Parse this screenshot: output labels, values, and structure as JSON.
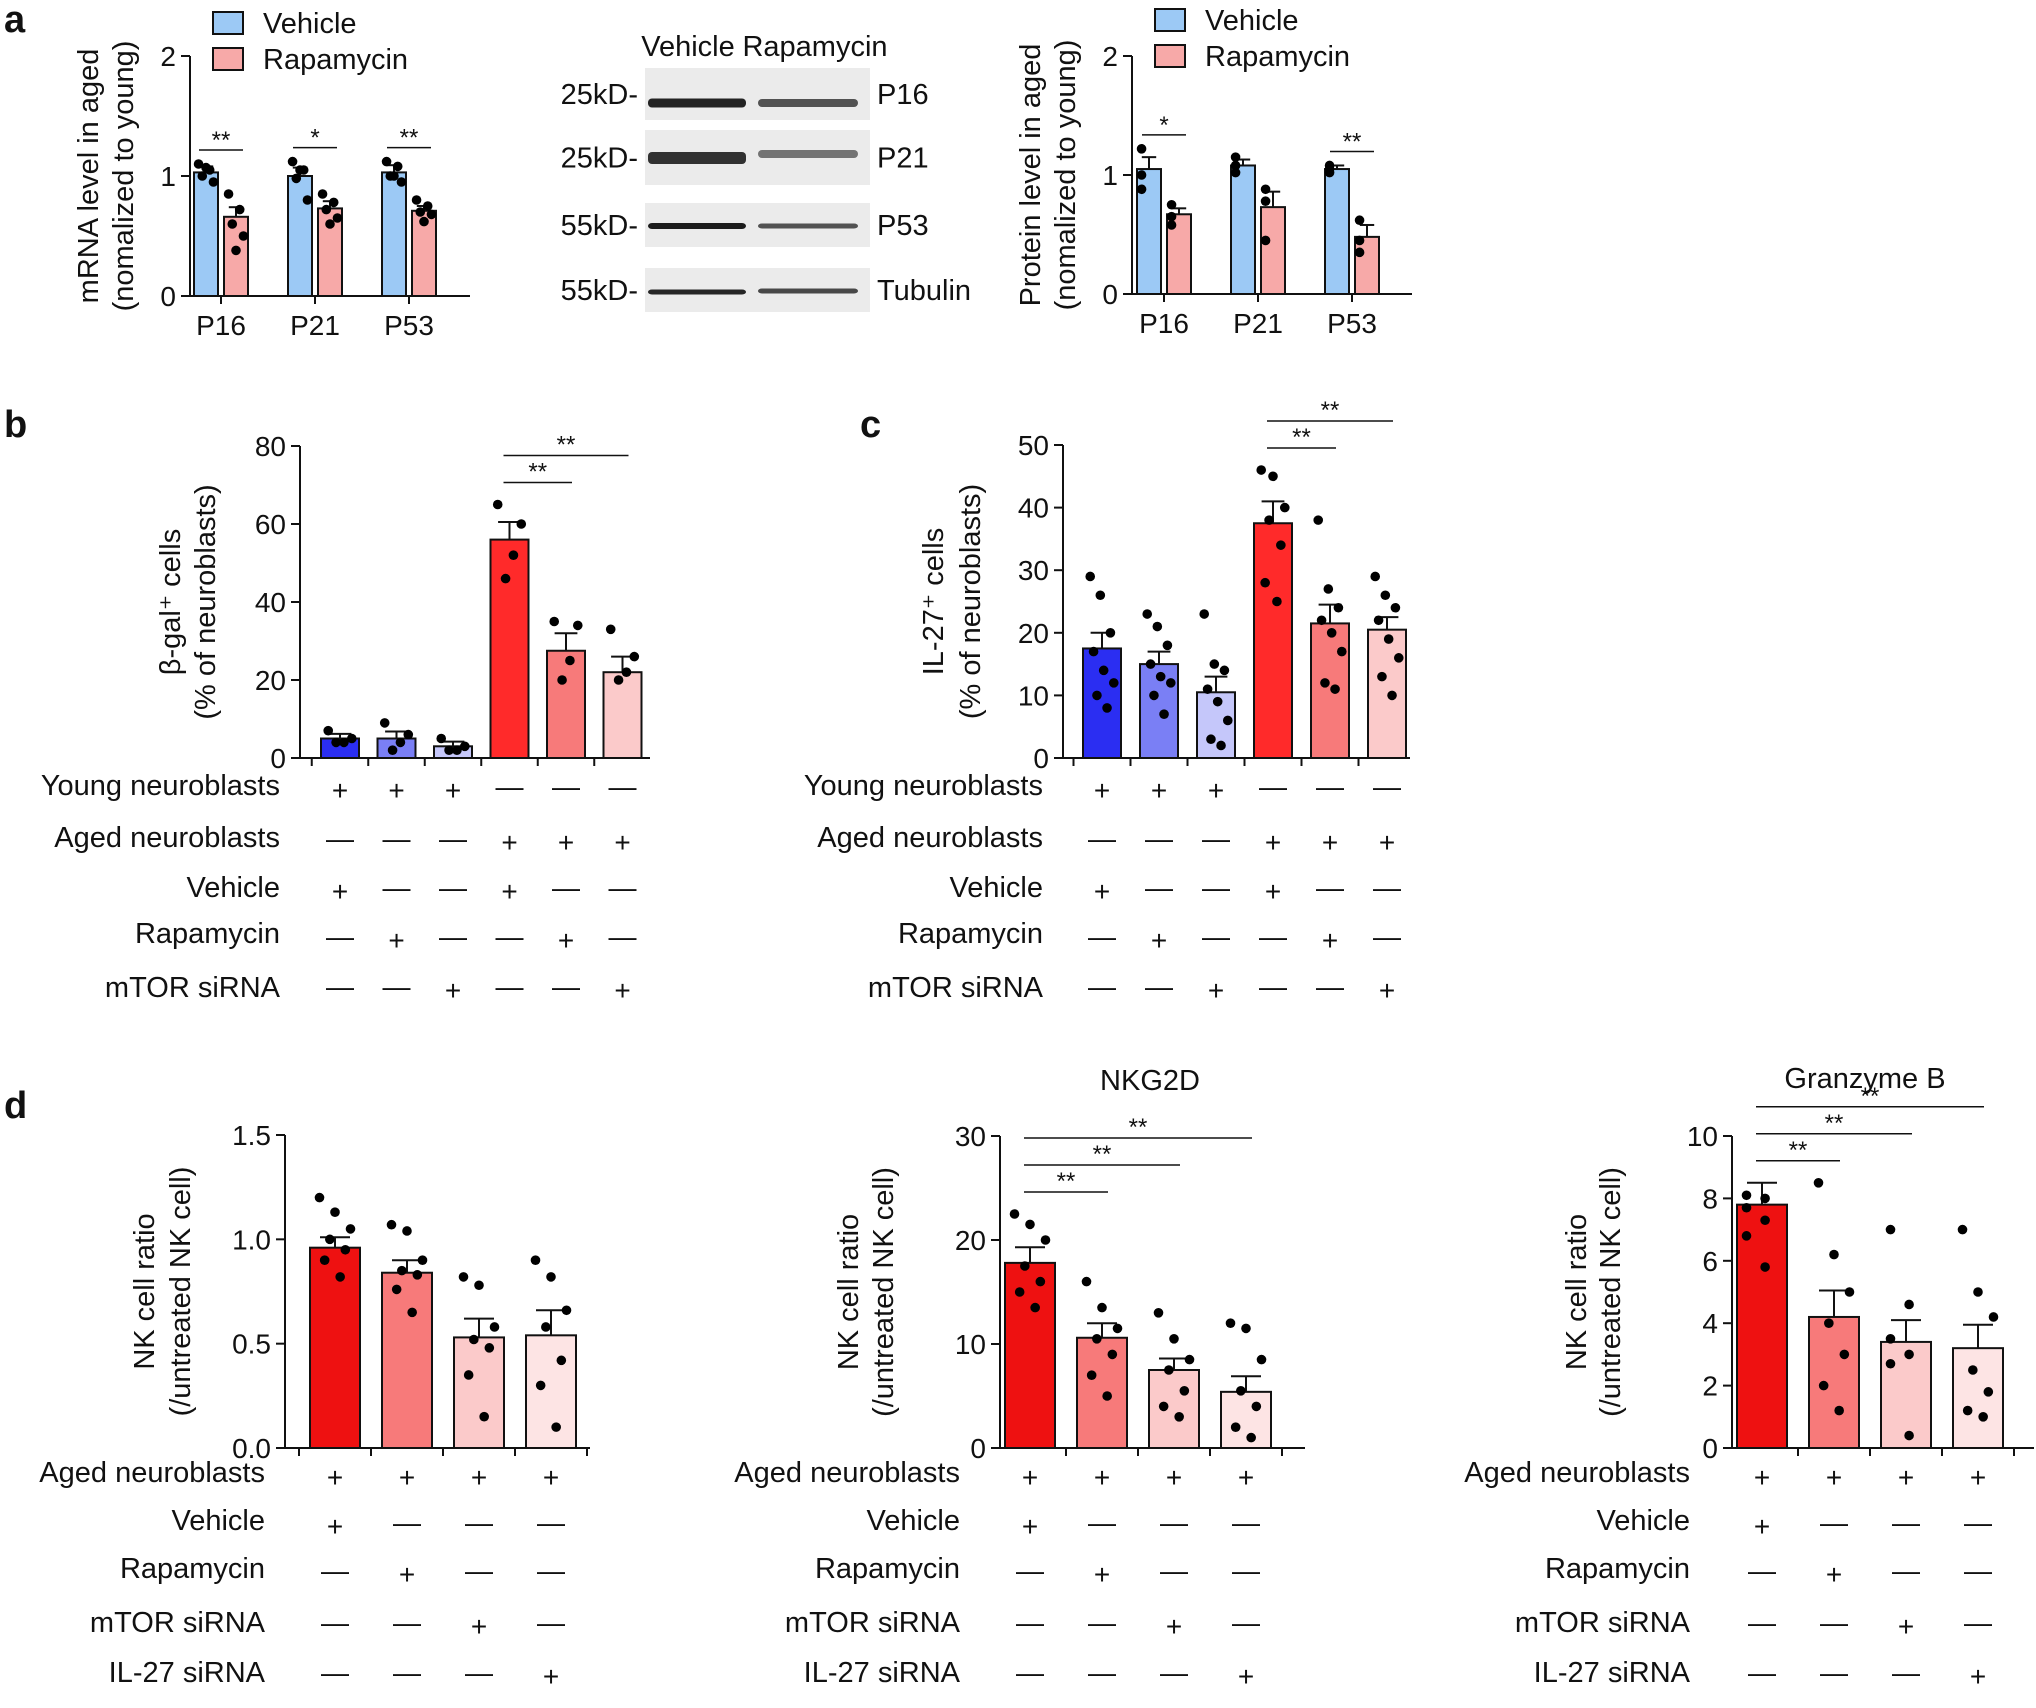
{
  "panels": {
    "a": "a",
    "b": "b",
    "c": "c",
    "d": "d"
  },
  "chart_data": [
    {
      "id": "a_mrna",
      "type": "bar",
      "title": "",
      "ylabel": [
        "mRNA level in aged",
        "(nomalized to young)"
      ],
      "ylim": [
        0,
        2
      ],
      "yticks": [
        0,
        1,
        2
      ],
      "categories": [
        "P16",
        "P21",
        "P53"
      ],
      "series": [
        {
          "name": "Vehicle",
          "color": "#9cc9f5",
          "values": [
            1.03,
            1.0,
            1.03
          ],
          "sem": [
            0.05,
            0.07,
            0.06
          ],
          "points": [
            [
              1.1,
              1.05,
              1.0,
              0.95,
              1.07
            ],
            [
              1.12,
              1.05,
              0.98,
              0.8,
              1.05
            ],
            [
              1.12,
              1.08,
              1.0,
              0.95,
              1.0
            ]
          ]
        },
        {
          "name": "Rapamycin",
          "color": "#f7a9a8",
          "values": [
            0.66,
            0.73,
            0.71
          ],
          "sem": [
            0.08,
            0.06,
            0.04
          ],
          "points": [
            [
              0.85,
              0.72,
              0.6,
              0.5,
              0.38
            ],
            [
              0.85,
              0.78,
              0.72,
              0.65,
              0.6
            ],
            [
              0.8,
              0.75,
              0.7,
              0.68,
              0.62
            ]
          ]
        }
      ],
      "sig": [
        {
          "groups": [
            0,
            0
          ],
          "label": "**"
        },
        {
          "groups": [
            1,
            1
          ],
          "label": "*"
        },
        {
          "groups": [
            2,
            2
          ],
          "label": "**"
        }
      ]
    },
    {
      "id": "a_protein",
      "type": "bar",
      "title": "",
      "ylabel": [
        "Protein level in aged",
        "(nomalized to young)"
      ],
      "ylim": [
        0,
        2
      ],
      "yticks": [
        0,
        1,
        2
      ],
      "categories": [
        "P16",
        "P21",
        "P53"
      ],
      "series": [
        {
          "name": "Vehicle",
          "color": "#9cc9f5",
          "values": [
            1.05,
            1.08,
            1.05
          ],
          "sem": [
            0.1,
            0.05,
            0.03
          ],
          "points": [
            [
              1.22,
              1.0,
              0.88
            ],
            [
              1.15,
              1.08,
              1.02
            ],
            [
              1.08,
              1.05,
              1.02
            ]
          ]
        },
        {
          "name": "Rapamycin",
          "color": "#f7a9a8",
          "values": [
            0.67,
            0.73,
            0.48
          ],
          "sem": [
            0.05,
            0.13,
            0.1
          ],
          "points": [
            [
              0.75,
              0.65,
              0.58
            ],
            [
              0.88,
              0.78,
              0.45
            ],
            [
              0.62,
              0.45,
              0.35
            ]
          ]
        }
      ],
      "sig": [
        {
          "groups": [
            0,
            0
          ],
          "label": "*"
        },
        {
          "groups": [
            2,
            2
          ],
          "label": "**"
        }
      ]
    },
    {
      "id": "b_bgal",
      "type": "bar",
      "title": "",
      "ylabel": [
        "β-gal⁺ cells",
        "(% of neuroblasts)"
      ],
      "ylim": [
        0,
        80
      ],
      "yticks": [
        0,
        20,
        40,
        60,
        80
      ],
      "categories": [
        "1",
        "2",
        "3",
        "4",
        "5",
        "6"
      ],
      "colors": [
        "#2b2ef2",
        "#7a7ff5",
        "#c5c7fa",
        "#ff2a2a",
        "#f77a7a",
        "#fbcaca"
      ],
      "values": [
        5,
        5,
        3,
        56,
        27.5,
        22
      ],
      "sem": [
        1.2,
        1.8,
        1.2,
        4.5,
        4.5,
        4
      ],
      "points": [
        [
          7,
          5,
          4,
          4
        ],
        [
          9,
          6,
          4,
          2
        ],
        [
          5,
          3,
          2,
          2
        ],
        [
          65,
          60,
          52,
          46
        ],
        [
          35,
          34,
          25,
          20
        ],
        [
          33,
          26,
          22,
          20
        ]
      ],
      "sig": [
        {
          "from": 3,
          "to": 4,
          "label": "**"
        },
        {
          "from": 3,
          "to": 5,
          "label": "**"
        }
      ],
      "conditions": [
        {
          "label": "Young neuroblasts",
          "marks": [
            "+",
            "+",
            "+",
            "—",
            "—",
            "—"
          ]
        },
        {
          "label": "Aged neuroblasts",
          "marks": [
            "—",
            "—",
            "—",
            "+",
            "+",
            "+"
          ]
        },
        {
          "label": "Vehicle",
          "marks": [
            "+",
            "—",
            "—",
            "+",
            "—",
            "—"
          ]
        },
        {
          "label": "Rapamycin",
          "marks": [
            "—",
            "+",
            "—",
            "—",
            "+",
            "—"
          ]
        },
        {
          "label": "mTOR siRNA",
          "marks": [
            "—",
            "—",
            "+",
            "—",
            "—",
            "+"
          ]
        }
      ]
    },
    {
      "id": "c_il27",
      "type": "bar",
      "title": "",
      "ylabel": [
        "IL-27⁺ cells",
        "(% of neuroblasts)"
      ],
      "ylim": [
        0,
        50
      ],
      "yticks": [
        0,
        10,
        20,
        30,
        40,
        50
      ],
      "categories": [
        "1",
        "2",
        "3",
        "4",
        "5",
        "6"
      ],
      "colors": [
        "#2b2ef2",
        "#7a7ff5",
        "#c5c7fa",
        "#ff2a2a",
        "#f77a7a",
        "#fbcaca"
      ],
      "values": [
        17.5,
        15,
        10.5,
        37.5,
        21.5,
        20.5
      ],
      "sem": [
        2.5,
        2,
        2.5,
        3.5,
        3,
        2
      ],
      "points": [
        [
          29,
          26,
          20,
          17,
          14,
          12,
          10,
          8
        ],
        [
          23,
          21,
          18,
          15,
          13,
          12,
          10,
          7
        ],
        [
          23,
          15,
          14,
          11,
          9,
          6,
          3,
          2
        ],
        [
          46,
          45,
          40,
          38,
          34,
          28,
          25
        ],
        [
          38,
          27,
          24,
          22,
          20,
          17,
          12,
          11
        ],
        [
          29,
          26,
          24,
          22,
          19,
          16,
          13,
          10
        ]
      ],
      "sig": [
        {
          "from": 3,
          "to": 4,
          "label": "**"
        },
        {
          "from": 3,
          "to": 5,
          "label": "**"
        }
      ],
      "conditions": [
        {
          "label": "Young neuroblasts",
          "marks": [
            "+",
            "+",
            "+",
            "—",
            "—",
            "—"
          ]
        },
        {
          "label": "Aged neuroblasts",
          "marks": [
            "—",
            "—",
            "—",
            "+",
            "+",
            "+"
          ]
        },
        {
          "label": "Vehicle",
          "marks": [
            "+",
            "—",
            "—",
            "+",
            "—",
            "—"
          ]
        },
        {
          "label": "Rapamycin",
          "marks": [
            "—",
            "+",
            "—",
            "—",
            "+",
            "—"
          ]
        },
        {
          "label": "mTOR siRNA",
          "marks": [
            "—",
            "—",
            "+",
            "—",
            "—",
            "+"
          ]
        }
      ]
    },
    {
      "id": "d_nk",
      "type": "bar",
      "title": "",
      "ylabel": [
        "NK cell ratio",
        "(/untreated NK cell)"
      ],
      "ylim": [
        0,
        1.5
      ],
      "yticks": [
        0,
        0.5,
        1.0,
        1.5
      ],
      "yticklabels": [
        "0.0",
        "0.5",
        "1.0",
        "1.5"
      ],
      "categories": [
        "1",
        "2",
        "3",
        "4"
      ],
      "colors": [
        "#ee1111",
        "#f77a7a",
        "#fbcaca",
        "#fde4e4"
      ],
      "values": [
        0.96,
        0.84,
        0.53,
        0.54
      ],
      "sem": [
        0.05,
        0.06,
        0.09,
        0.12
      ],
      "points": [
        [
          1.2,
          1.13,
          1.05,
          1.0,
          0.95,
          0.9,
          0.82
        ],
        [
          1.07,
          1.04,
          0.9,
          0.85,
          0.83,
          0.76,
          0.65
        ],
        [
          0.82,
          0.78,
          0.58,
          0.52,
          0.48,
          0.35,
          0.15
        ],
        [
          0.9,
          0.82,
          0.66,
          0.58,
          0.42,
          0.3,
          0.1
        ]
      ],
      "sig": [],
      "conditions": [
        {
          "label": "Aged neuroblasts",
          "marks": [
            "+",
            "+",
            "+",
            "+"
          ]
        },
        {
          "label": "Vehicle",
          "marks": [
            "+",
            "—",
            "—",
            "—"
          ]
        },
        {
          "label": "Rapamycin",
          "marks": [
            "—",
            "+",
            "—",
            "—"
          ]
        },
        {
          "label": "mTOR siRNA",
          "marks": [
            "—",
            "—",
            "+",
            "—"
          ]
        },
        {
          "label": "IL-27 siRNA",
          "marks": [
            "—",
            "—",
            "—",
            "+"
          ]
        }
      ]
    },
    {
      "id": "d_nkg2d",
      "type": "bar",
      "title": "NKG2D",
      "ylabel": [
        "NK cell ratio",
        "(/untreated NK cell)"
      ],
      "ylim": [
        0,
        30
      ],
      "yticks": [
        0,
        10,
        20,
        30
      ],
      "categories": [
        "1",
        "2",
        "3",
        "4"
      ],
      "colors": [
        "#ee1111",
        "#f77a7a",
        "#fbcaca",
        "#fde4e4"
      ],
      "values": [
        17.8,
        10.6,
        7.5,
        5.4
      ],
      "sem": [
        1.5,
        1.4,
        1.1,
        1.5
      ],
      "points": [
        [
          22.5,
          21.5,
          20,
          17.5,
          16,
          15,
          13.5
        ],
        [
          16,
          13.5,
          11.5,
          10.5,
          9,
          7,
          5
        ],
        [
          13,
          10.5,
          8.5,
          7.5,
          5.5,
          4,
          3
        ],
        [
          12,
          11.5,
          8.5,
          5.5,
          4,
          2,
          1
        ]
      ],
      "sig": [
        {
          "from": 0,
          "to": 1,
          "label": "**"
        },
        {
          "from": 0,
          "to": 2,
          "label": "**"
        },
        {
          "from": 0,
          "to": 3,
          "label": "**"
        }
      ],
      "conditions": [
        {
          "label": "Aged neuroblasts",
          "marks": [
            "+",
            "+",
            "+",
            "+"
          ]
        },
        {
          "label": "Vehicle",
          "marks": [
            "+",
            "—",
            "—",
            "—"
          ]
        },
        {
          "label": "Rapamycin",
          "marks": [
            "—",
            "+",
            "—",
            "—"
          ]
        },
        {
          "label": "mTOR siRNA",
          "marks": [
            "—",
            "—",
            "+",
            "—"
          ]
        },
        {
          "label": "IL-27 siRNA",
          "marks": [
            "—",
            "—",
            "—",
            "+"
          ]
        }
      ]
    },
    {
      "id": "d_gzmb",
      "type": "bar",
      "title": "Granzyme B",
      "ylabel": [
        "NK cell ratio",
        "(/untreated NK cell)"
      ],
      "ylim": [
        0,
        10
      ],
      "yticks": [
        0,
        2,
        4,
        6,
        8,
        10
      ],
      "categories": [
        "1",
        "2",
        "3",
        "4"
      ],
      "colors": [
        "#ee1111",
        "#f77a7a",
        "#fbcaca",
        "#fde4e4"
      ],
      "values": [
        7.8,
        4.2,
        3.4,
        3.2
      ],
      "sem": [
        0.7,
        0.85,
        0.7,
        0.75
      ],
      "points": [
        [
          8.1,
          8.0,
          7.7,
          7.3,
          6.8,
          5.8
        ],
        [
          8.5,
          6.2,
          5.0,
          4.0,
          3.0,
          2.0,
          1.2
        ],
        [
          7.0,
          4.6,
          3.5,
          3.0,
          2.7,
          0.4
        ],
        [
          7.0,
          5.0,
          4.2,
          2.5,
          1.8,
          1.2,
          1.0
        ]
      ],
      "sig": [
        {
          "from": 0,
          "to": 1,
          "label": "**"
        },
        {
          "from": 0,
          "to": 2,
          "label": "**"
        },
        {
          "from": 0,
          "to": 3,
          "label": "**"
        }
      ],
      "conditions": [
        {
          "label": "Aged neuroblasts",
          "marks": [
            "+",
            "+",
            "+",
            "+"
          ]
        },
        {
          "label": "Vehicle",
          "marks": [
            "+",
            "—",
            "—",
            "—"
          ]
        },
        {
          "label": "Rapamycin",
          "marks": [
            "—",
            "+",
            "—",
            "—"
          ]
        },
        {
          "label": "mTOR siRNA",
          "marks": [
            "—",
            "—",
            "+",
            "—"
          ]
        },
        {
          "label": "IL-27 siRNA",
          "marks": [
            "—",
            "—",
            "—",
            "+"
          ]
        }
      ]
    }
  ],
  "western_blot": {
    "lanes": [
      "Vehicle",
      "Rapamycin"
    ],
    "rows": [
      {
        "marker": "25kD-",
        "protein": "P16"
      },
      {
        "marker": "25kD-",
        "protein": "P21"
      },
      {
        "marker": "55kD-",
        "protein": "P53"
      },
      {
        "marker": "55kD-",
        "protein": "Tubulin"
      }
    ]
  }
}
